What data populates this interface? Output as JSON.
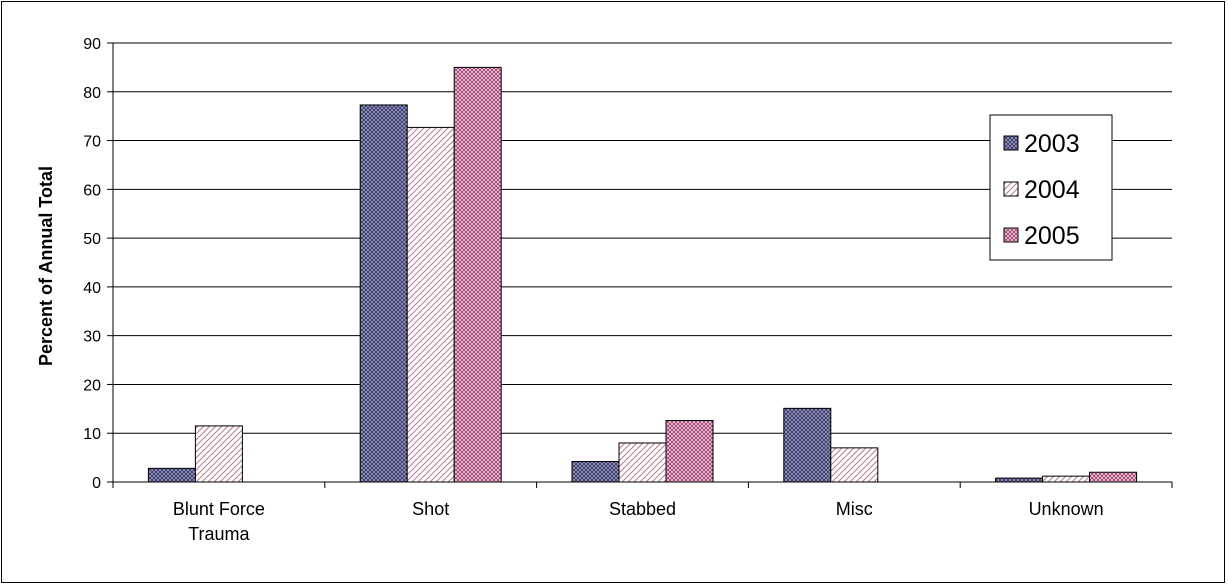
{
  "chart_data": {
    "type": "bar",
    "title": "",
    "xlabel": "",
    "ylabel": "Percent of Annual Total",
    "ylim": [
      0,
      90
    ],
    "yticks": [
      0,
      10,
      20,
      30,
      40,
      50,
      60,
      70,
      80,
      90
    ],
    "grid": true,
    "legend_position": "right",
    "categories": [
      [
        "Blunt Force",
        "Trauma"
      ],
      [
        "Shot"
      ],
      [
        "Stabbed"
      ],
      [
        "Misc"
      ],
      [
        "Unknown"
      ]
    ],
    "series": [
      {
        "name": "2003",
        "values": [
          2.8,
          77.3,
          4.2,
          15.1,
          0.8
        ],
        "color": "#9999cc",
        "pattern": "crosshatch"
      },
      {
        "name": "2004",
        "values": [
          11.5,
          72.7,
          8.0,
          7.0,
          1.2
        ],
        "color": "#cc99aa",
        "pattern": "diagonal"
      },
      {
        "name": "2005",
        "values": [
          0,
          85.0,
          12.6,
          0,
          2.0
        ],
        "color": "#993366",
        "pattern": "crosshatch"
      }
    ]
  }
}
